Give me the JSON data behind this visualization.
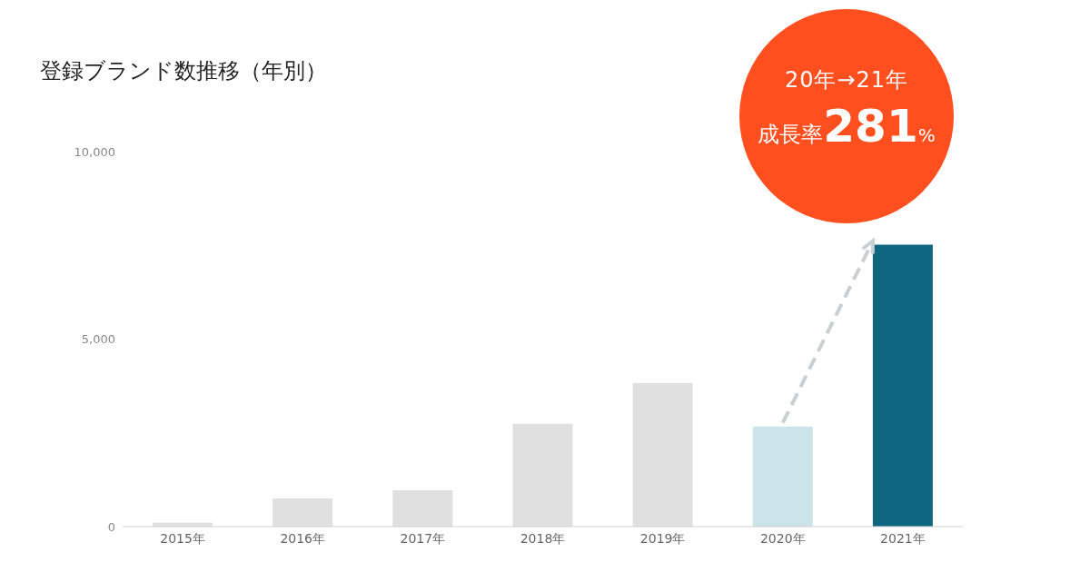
{
  "chart_data": {
    "type": "bar",
    "title": "登録ブランド数推移（年別）",
    "categories": [
      "2015年",
      "2016年",
      "2017年",
      "2018年",
      "2019年",
      "2020年",
      "2021年"
    ],
    "values": [
      100,
      750,
      970,
      2740,
      3830,
      2670,
      7520
    ],
    "colors": [
      "#e0e0e0",
      "#e0e0e0",
      "#e0e0e0",
      "#e0e0e0",
      "#e0e0e0",
      "#cde3ea",
      "#0e6680"
    ],
    "ylim": [
      0,
      10000
    ],
    "yticks": [
      0,
      {
        "value": 5000,
        "label": "5,000"
      },
      {
        "value": 10000,
        "label": "10,000"
      }
    ],
    "grid": false,
    "legend": false,
    "annotations": [
      "20年→21年",
      "成長率281%"
    ]
  }
}
